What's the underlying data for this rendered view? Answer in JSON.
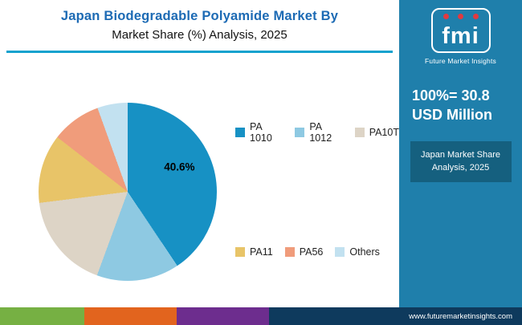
{
  "header": {
    "title_line1": "Japan Biodegradable Polyamide Market By",
    "title_line2": "Market Share (%) Analysis, 2025"
  },
  "chart_data": {
    "type": "pie",
    "title": "Japan Biodegradable Polyamide Market By Market Share (%) Analysis, 2025",
    "labels": [
      "PA 1010",
      "PA 1012",
      "PA10T",
      "PA11",
      "PA56",
      "Others"
    ],
    "values": [
      40.6,
      15.0,
      17.4,
      12.5,
      9.0,
      5.5
    ],
    "colors": [
      "#1791c4",
      "#8ec9e2",
      "#ddd4c6",
      "#e8c468",
      "#f09c7b",
      "#c2e1f0"
    ],
    "annotation": "40.6%",
    "legend_position": "right, two rows (first three top, last three bottom)",
    "start_angle": "top, clockwise"
  },
  "sidebar": {
    "logo_text": "fmi",
    "logo_caption": "Future Market Insights",
    "stat_line1": "100%= 30.8",
    "stat_line2": "USD Million",
    "badge_line1": "Japan Market Share",
    "badge_line2": "Analysis, 2025",
    "footer_url": "www.futuremarketinsights.com"
  },
  "colors": {
    "title_blue": "#1c6ab4",
    "rule_teal": "#13a2ce",
    "sidebar_blue": "#1f7fab",
    "badge_dark_blue": "#15607f",
    "logo_accent_red": "#e03a40",
    "stripe_green": "#76b043",
    "stripe_orange": "#e2641e",
    "stripe_purple": "#6d2d8e",
    "stripe_navy": "#0e3a5d"
  }
}
